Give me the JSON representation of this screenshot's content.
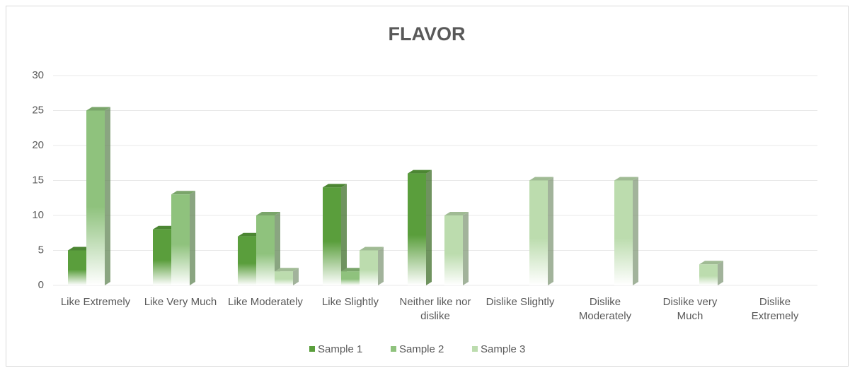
{
  "chart_data": {
    "type": "bar",
    "title": "FLAVOR",
    "categories": [
      "Like Extremely",
      "Like Very Much",
      "Like Moderately",
      "Like Slightly",
      "Neither like nor dislike",
      "Dislike Slightly",
      "Dislike Moderately",
      "Dislike very Much",
      "Dislike Extremely"
    ],
    "series": [
      {
        "name": "Sample 1",
        "color": "#5a9e3c",
        "values": [
          5,
          8,
          7,
          14,
          16,
          0,
          0,
          0,
          0
        ]
      },
      {
        "name": "Sample 2",
        "color": "#8fc27d",
        "values": [
          25,
          13,
          10,
          2,
          0,
          0,
          0,
          0,
          0
        ]
      },
      {
        "name": "Sample 3",
        "color": "#bcdcae",
        "values": [
          0,
          0,
          2,
          5,
          10,
          15,
          15,
          3,
          0
        ]
      }
    ],
    "ylim": [
      0,
      30
    ],
    "yticks": [
      0,
      5,
      10,
      15,
      20,
      25,
      30
    ],
    "grid": true,
    "legend": "bottom"
  }
}
